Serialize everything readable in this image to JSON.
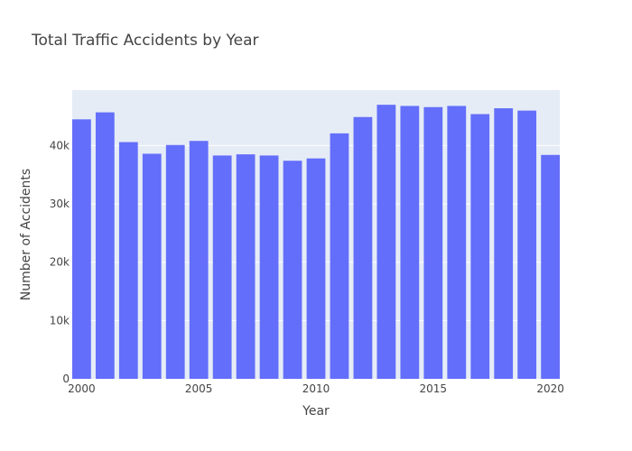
{
  "chart_data": {
    "type": "bar",
    "title": "Total Traffic Accidents by Year",
    "xlabel": "Year",
    "ylabel": "Number of Accidents",
    "x": [
      2000,
      2001,
      2002,
      2003,
      2004,
      2005,
      2006,
      2007,
      2008,
      2009,
      2010,
      2011,
      2012,
      2013,
      2014,
      2015,
      2016,
      2017,
      2018,
      2019,
      2020
    ],
    "values": [
      44500,
      45700,
      40600,
      38600,
      40100,
      40800,
      38300,
      38500,
      38300,
      37400,
      37800,
      42100,
      44900,
      47000,
      46800,
      46600,
      46800,
      45400,
      46400,
      46000,
      38400
    ],
    "xlim": [
      1999.6,
      2020.4
    ],
    "ylim": [
      0,
      49500
    ],
    "x_ticks": [
      {
        "value": 2000,
        "label": "2000"
      },
      {
        "value": 2005,
        "label": "2005"
      },
      {
        "value": 2010,
        "label": "2010"
      },
      {
        "value": 2015,
        "label": "2015"
      },
      {
        "value": 2020,
        "label": "2020"
      }
    ],
    "y_ticks": [
      {
        "value": 0,
        "label": "0"
      },
      {
        "value": 10000,
        "label": "10k"
      },
      {
        "value": 20000,
        "label": "20k"
      },
      {
        "value": 30000,
        "label": "30k"
      },
      {
        "value": 40000,
        "label": "40k"
      }
    ],
    "grid": true,
    "colors": {
      "bar": "#636efa",
      "plot_bg": "#e5ecf6",
      "grid": "#ffffff"
    }
  }
}
